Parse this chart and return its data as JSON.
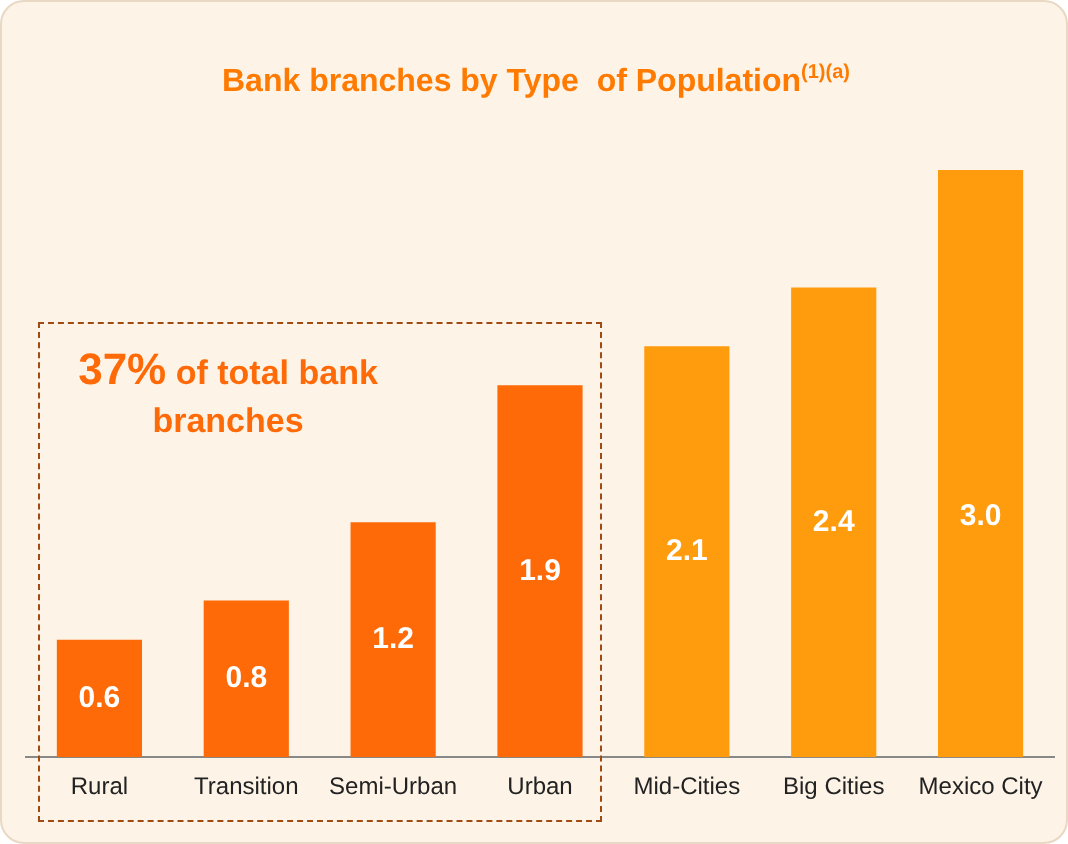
{
  "chart_data": {
    "type": "bar",
    "title": "Bank branches by Type  of Population$^{(1)(a)}$",
    "categories": [
      "Rural",
      "Transition",
      "Semi-Urban",
      "Urban",
      "Mid-Cities",
      "Big Cities",
      "Mexico City"
    ],
    "values": [
      0.6,
      0.8,
      1.2,
      1.9,
      2.1,
      2.4,
      3.0
    ],
    "value_labels": [
      "0.6",
      "0.8",
      "1.2",
      "1.9",
      "2.1",
      "2.4",
      "3.0"
    ],
    "colors": [
      "#fe6a08",
      "#fe6a08",
      "#fe6a08",
      "#fe6a08",
      "#ff9c0d",
      "#ff9c0d",
      "#ff9c0d"
    ],
    "annotations": [
      "37% of total bank branches"
    ]
  }
}
